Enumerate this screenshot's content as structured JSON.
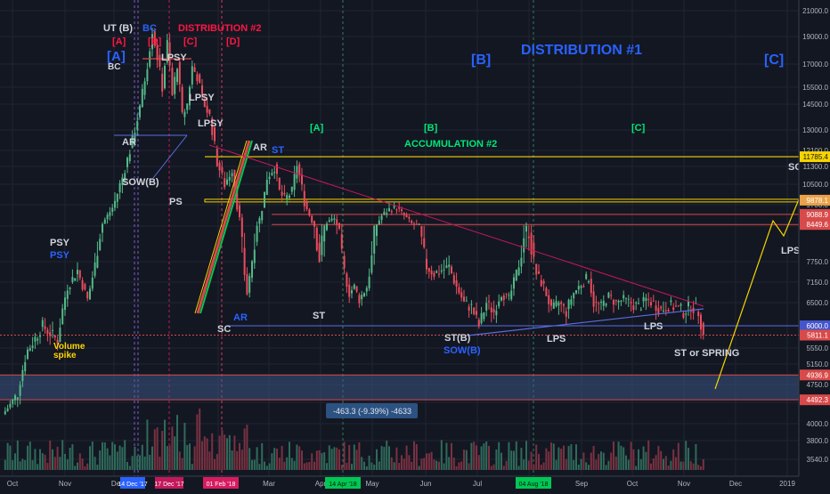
{
  "colors": {
    "background": "#131722",
    "grid": "#1f2433",
    "axis_text": "#b2b5be",
    "candle_up": "#53b987",
    "candle_down": "#eb4d5c",
    "vol_up": "#2f6a5a",
    "vol_down": "#7a3141",
    "label_white": "#d1d4dc",
    "label_blue": "#2962ff",
    "label_red": "#ff1744",
    "label_green": "#00e676",
    "label_yellow": "#ffd600",
    "hline_yellow": "#f5d400",
    "hline_red": "#d84a4a",
    "support_blue": "#5b6ee1",
    "resistance_red": "#c2185b",
    "range_box": "#787b86"
  },
  "chart_data": {
    "type": "candlestick",
    "title": "",
    "x_axis_labels": [
      "Oct",
      "Nov",
      "De",
      "Mar",
      "Apr",
      "May",
      "Jun",
      "Jul",
      "Sep",
      "Oct",
      "Nov",
      "Dec",
      "2019"
    ],
    "x_axis_highlights": [
      "14 Dec '17",
      "17 Dec '17",
      "01 Feb '18",
      "14 Apr '18",
      "04 Aug '18"
    ],
    "y_axis_ticks": [
      21000.0,
      19000.0,
      17000.0,
      15500.0,
      14500.0,
      13000.0,
      12100.0,
      11300.0,
      10500.0,
      9700.0,
      8350.0,
      7750.0,
      7150.0,
      6500.0,
      5550.0,
      5150.0,
      4750.0,
      4450.0,
      4000.0,
      3800.0,
      3540.0
    ],
    "price_tags": [
      {
        "value": 11785.4,
        "label": "11785.4"
      },
      {
        "value": 9878.1,
        "label": "9878.1"
      },
      {
        "value": 9088.9,
        "label": "9088.9"
      },
      {
        "value": 8449.6,
        "label": "8449.6"
      },
      {
        "value": 6000.0,
        "label": "6000.0"
      },
      {
        "value": 5811.1,
        "label": "5811.1"
      },
      {
        "value": 4936.9,
        "label": "4936.9"
      },
      {
        "value": 4492.3,
        "label": "4492.3"
      }
    ],
    "measure_label": "-463.3 (-9.39%) -4633",
    "annotations": [
      "UT (B)",
      "BC",
      "DISTRIBUTION #2",
      "[A]",
      "[B]",
      "[C]",
      "[D]",
      "[A]",
      "BC",
      "LPSY",
      "LPSY",
      "LPSY",
      "[B]",
      "DISTRIBUTION #1",
      "[C]",
      "AR",
      "SOW(B)",
      "PS",
      "AR",
      "ST",
      "[A]",
      "[B]",
      "[C]",
      "ACCUMULATION #2",
      "SO",
      "PSY",
      "PSY",
      "Volume spike",
      "SC",
      "AR",
      "ST",
      "ST(B)",
      "SOW(B)",
      "LPS",
      "LPS",
      "LPS",
      "ST or SPRING"
    ],
    "price_path": [
      {
        "i": 0,
        "v": 4200
      },
      {
        "i": 6,
        "v": 4600
      },
      {
        "i": 10,
        "v": 5500
      },
      {
        "i": 16,
        "v": 6000
      },
      {
        "i": 22,
        "v": 5700
      },
      {
        "i": 26,
        "v": 7000
      },
      {
        "i": 30,
        "v": 7500
      },
      {
        "i": 34,
        "v": 6600
      },
      {
        "i": 38,
        "v": 8000
      },
      {
        "i": 44,
        "v": 9500
      },
      {
        "i": 48,
        "v": 10800
      },
      {
        "i": 52,
        "v": 12500
      },
      {
        "i": 55,
        "v": 14200
      },
      {
        "i": 58,
        "v": 17000
      },
      {
        "i": 60,
        "v": 19500
      },
      {
        "i": 62,
        "v": 17500
      },
      {
        "i": 64,
        "v": 15500
      },
      {
        "i": 66,
        "v": 18500
      },
      {
        "i": 68,
        "v": 15000
      },
      {
        "i": 70,
        "v": 17000
      },
      {
        "i": 72,
        "v": 13800
      },
      {
        "i": 74,
        "v": 14500
      },
      {
        "i": 76,
        "v": 16800
      },
      {
        "i": 78,
        "v": 16200
      },
      {
        "i": 80,
        "v": 14800
      },
      {
        "i": 83,
        "v": 13800
      },
      {
        "i": 86,
        "v": 11500
      },
      {
        "i": 89,
        "v": 10500
      },
      {
        "i": 92,
        "v": 11200
      },
      {
        "i": 96,
        "v": 8000
      },
      {
        "i": 98,
        "v": 6800
      },
      {
        "i": 100,
        "v": 7800
      },
      {
        "i": 103,
        "v": 8800
      },
      {
        "i": 106,
        "v": 10800
      },
      {
        "i": 109,
        "v": 11300
      },
      {
        "i": 111,
        "v": 10200
      },
      {
        "i": 113,
        "v": 9900
      },
      {
        "i": 116,
        "v": 10200
      },
      {
        "i": 118,
        "v": 11400
      },
      {
        "i": 121,
        "v": 9800
      },
      {
        "i": 124,
        "v": 8700
      },
      {
        "i": 127,
        "v": 7800
      },
      {
        "i": 130,
        "v": 8600
      },
      {
        "i": 133,
        "v": 8800
      },
      {
        "i": 136,
        "v": 7800
      },
      {
        "i": 139,
        "v": 6800
      },
      {
        "i": 141,
        "v": 7000
      },
      {
        "i": 143,
        "v": 6600
      },
      {
        "i": 146,
        "v": 7000
      },
      {
        "i": 149,
        "v": 8200
      },
      {
        "i": 152,
        "v": 9000
      },
      {
        "i": 155,
        "v": 9400
      },
      {
        "i": 158,
        "v": 9500
      },
      {
        "i": 161,
        "v": 9000
      },
      {
        "i": 164,
        "v": 8500
      },
      {
        "i": 167,
        "v": 8300
      },
      {
        "i": 170,
        "v": 7600
      },
      {
        "i": 173,
        "v": 7400
      },
      {
        "i": 176,
        "v": 7500
      },
      {
        "i": 179,
        "v": 7600
      },
      {
        "i": 182,
        "v": 7000
      },
      {
        "i": 185,
        "v": 6500
      },
      {
        "i": 188,
        "v": 6400
      },
      {
        "i": 191,
        "v": 6000
      },
      {
        "i": 194,
        "v": 6500
      },
      {
        "i": 197,
        "v": 6300
      },
      {
        "i": 200,
        "v": 6800
      },
      {
        "i": 203,
        "v": 6600
      },
      {
        "i": 206,
        "v": 7400
      },
      {
        "i": 209,
        "v": 8200
      },
      {
        "i": 211,
        "v": 8300
      },
      {
        "i": 214,
        "v": 7400
      },
      {
        "i": 217,
        "v": 7000
      },
      {
        "i": 220,
        "v": 6300
      },
      {
        "i": 223,
        "v": 6500
      },
      {
        "i": 226,
        "v": 6300
      },
      {
        "i": 229,
        "v": 6800
      },
      {
        "i": 232,
        "v": 7100
      },
      {
        "i": 235,
        "v": 7300
      },
      {
        "i": 237,
        "v": 6500
      },
      {
        "i": 240,
        "v": 6400
      },
      {
        "i": 243,
        "v": 6700
      },
      {
        "i": 246,
        "v": 6500
      },
      {
        "i": 249,
        "v": 6600
      },
      {
        "i": 252,
        "v": 6500
      },
      {
        "i": 255,
        "v": 6400
      },
      {
        "i": 258,
        "v": 6600
      },
      {
        "i": 261,
        "v": 6500
      },
      {
        "i": 264,
        "v": 6350
      },
      {
        "i": 267,
        "v": 6450
      },
      {
        "i": 270,
        "v": 6400
      },
      {
        "i": 273,
        "v": 6300
      },
      {
        "i": 276,
        "v": 6450
      },
      {
        "i": 279,
        "v": 6300
      },
      {
        "i": 281,
        "v": 5800
      }
    ]
  }
}
